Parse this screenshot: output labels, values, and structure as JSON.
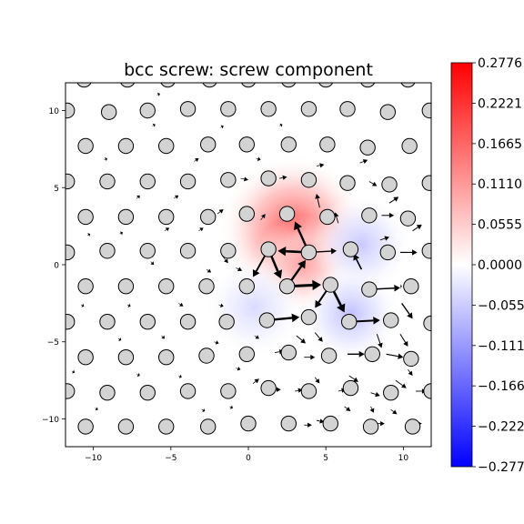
{
  "chart_data": {
    "type": "heatmap",
    "title": "bcc screw: screw component",
    "xlabel": "",
    "ylabel": "",
    "xlim": [
      -11.8,
      11.8
    ],
    "ylim": [
      -11.8,
      11.8
    ],
    "xticks": [
      -10,
      -5,
      0,
      5,
      10
    ],
    "yticks": [
      -10,
      -5,
      0,
      5,
      10
    ],
    "xtick_labels": [
      "−10",
      "−5",
      "0",
      "5",
      "10"
    ],
    "ytick_labels": [
      "−10",
      "−5",
      "0",
      "5",
      "10"
    ],
    "colormap": "bwr",
    "color_min": "#0000ff",
    "color_mid": "#ffffff",
    "color_max": "#ff0000",
    "colorbar": {
      "vmin": -0.2776,
      "vmax": 0.2776,
      "ticks": [
        0.2776,
        0.2221,
        0.1665,
        0.111,
        0.0555,
        0.0,
        -0.0555,
        -0.111,
        -0.1665,
        -0.2221,
        -0.2776
      ],
      "tick_labels": [
        "0.2776",
        "0.2221",
        "0.1665",
        "0.1110",
        "0.0555",
        "0.0000",
        "−0.0555",
        "−0.1110",
        "−0.1665",
        "−0.2221",
        "−0.2776"
      ]
    },
    "atom_color": "#d3d3d3",
    "atom_edge_color": "#000000",
    "field_peaks": [
      {
        "x": 2.9,
        "y": 2.3,
        "value": 0.19
      },
      {
        "x": 3.5,
        "y": 0.0,
        "value": 0.1
      },
      {
        "x": 7.3,
        "y": 1.3,
        "value": -0.06
      },
      {
        "x": 6.6,
        "y": -3.2,
        "value": -0.07
      },
      {
        "x": 0.4,
        "y": -2.8,
        "value": -0.04
      }
    ],
    "atoms": [
      {
        "x": -10.6,
        "y": 12.0
      },
      {
        "x": -7.8,
        "y": 12.0
      },
      {
        "x": -5.2,
        "y": 12.0
      },
      {
        "x": -2.5,
        "y": 12.0
      },
      {
        "x": 0.0,
        "y": 12.0
      },
      {
        "x": 2.6,
        "y": 12.0
      },
      {
        "x": 5.0,
        "y": 12.0
      },
      {
        "x": 7.7,
        "y": 12.0
      },
      {
        "x": 10.3,
        "y": 12.0
      },
      {
        "x": -11.7,
        "y": 10.0
      },
      {
        "x": -9.0,
        "y": 9.9
      },
      {
        "x": -6.5,
        "y": 10.0
      },
      {
        "x": -3.9,
        "y": 10.1
      },
      {
        "x": -1.3,
        "y": 10.1
      },
      {
        "x": 1.3,
        "y": 10.1
      },
      {
        "x": 3.9,
        "y": 10.1
      },
      {
        "x": 6.4,
        "y": 10.1
      },
      {
        "x": 9.0,
        "y": 9.9
      },
      {
        "x": 11.7,
        "y": 10.0
      },
      {
        "x": -10.5,
        "y": 7.7
      },
      {
        "x": -7.9,
        "y": 7.7
      },
      {
        "x": -5.3,
        "y": 7.7
      },
      {
        "x": -2.6,
        "y": 7.8
      },
      {
        "x": -0.1,
        "y": 7.8
      },
      {
        "x": 2.6,
        "y": 7.8
      },
      {
        "x": 5.1,
        "y": 7.8
      },
      {
        "x": 7.7,
        "y": 7.6
      },
      {
        "x": 10.4,
        "y": 7.7
      },
      {
        "x": -11.7,
        "y": 5.4
      },
      {
        "x": -9.1,
        "y": 5.4
      },
      {
        "x": -6.5,
        "y": 5.4
      },
      {
        "x": -3.9,
        "y": 5.4
      },
      {
        "x": -1.3,
        "y": 5.5
      },
      {
        "x": 1.3,
        "y": 5.6
      },
      {
        "x": 3.9,
        "y": 5.5
      },
      {
        "x": 6.4,
        "y": 5.3
      },
      {
        "x": 9.1,
        "y": 5.2
      },
      {
        "x": 11.7,
        "y": 5.3
      },
      {
        "x": -10.5,
        "y": 3.1
      },
      {
        "x": -7.9,
        "y": 3.1
      },
      {
        "x": -5.3,
        "y": 3.1
      },
      {
        "x": -2.6,
        "y": 3.1
      },
      {
        "x": -0.1,
        "y": 3.3
      },
      {
        "x": 2.5,
        "y": 3.3
      },
      {
        "x": 5.1,
        "y": 3.1
      },
      {
        "x": 7.8,
        "y": 3.2
      },
      {
        "x": 10.3,
        "y": 3.0
      },
      {
        "x": -11.7,
        "y": 0.8
      },
      {
        "x": -9.1,
        "y": 0.9
      },
      {
        "x": -6.5,
        "y": 0.9
      },
      {
        "x": -3.9,
        "y": 0.9
      },
      {
        "x": -1.3,
        "y": 0.9
      },
      {
        "x": 1.3,
        "y": 1.0
      },
      {
        "x": 3.9,
        "y": 0.8
      },
      {
        "x": 6.6,
        "y": 1.0
      },
      {
        "x": 9.0,
        "y": 0.8
      },
      {
        "x": 11.7,
        "y": 0.9
      },
      {
        "x": -10.5,
        "y": -1.4
      },
      {
        "x": -7.9,
        "y": -1.4
      },
      {
        "x": -5.3,
        "y": -1.4
      },
      {
        "x": -2.7,
        "y": -1.4
      },
      {
        "x": -0.1,
        "y": -1.4
      },
      {
        "x": 2.5,
        "y": -1.4
      },
      {
        "x": 5.3,
        "y": -1.3
      },
      {
        "x": 7.8,
        "y": -1.6
      },
      {
        "x": 10.5,
        "y": -1.4
      },
      {
        "x": -11.7,
        "y": -3.7
      },
      {
        "x": -9.1,
        "y": -3.7
      },
      {
        "x": -6.5,
        "y": -3.7
      },
      {
        "x": -3.9,
        "y": -3.7
      },
      {
        "x": -1.4,
        "y": -3.7
      },
      {
        "x": 1.2,
        "y": -3.6
      },
      {
        "x": 3.9,
        "y": -3.4
      },
      {
        "x": 6.5,
        "y": -3.7
      },
      {
        "x": 9.2,
        "y": -3.6
      },
      {
        "x": 11.8,
        "y": -3.8
      },
      {
        "x": -10.5,
        "y": -6.0
      },
      {
        "x": -7.9,
        "y": -6.0
      },
      {
        "x": -5.3,
        "y": -6.0
      },
      {
        "x": -2.7,
        "y": -5.9
      },
      {
        "x": -0.1,
        "y": -5.8
      },
      {
        "x": 2.6,
        "y": -5.7
      },
      {
        "x": 5.2,
        "y": -5.9
      },
      {
        "x": 8.0,
        "y": -5.8
      },
      {
        "x": 10.5,
        "y": -6.1
      },
      {
        "x": -11.7,
        "y": -8.2
      },
      {
        "x": -9.1,
        "y": -8.3
      },
      {
        "x": -6.5,
        "y": -8.3
      },
      {
        "x": -3.9,
        "y": -8.2
      },
      {
        "x": -1.3,
        "y": -8.2
      },
      {
        "x": 1.3,
        "y": -8.0
      },
      {
        "x": 3.9,
        "y": -8.2
      },
      {
        "x": 6.6,
        "y": -8.0
      },
      {
        "x": 9.2,
        "y": -8.3
      },
      {
        "x": 11.8,
        "y": -8.2
      },
      {
        "x": -10.5,
        "y": -10.5
      },
      {
        "x": -7.9,
        "y": -10.5
      },
      {
        "x": -5.3,
        "y": -10.5
      },
      {
        "x": -2.6,
        "y": -10.5
      },
      {
        "x": 0.0,
        "y": -10.3
      },
      {
        "x": 2.6,
        "y": -10.3
      },
      {
        "x": 5.3,
        "y": -10.3
      },
      {
        "x": 7.9,
        "y": -10.5
      },
      {
        "x": 10.6,
        "y": -10.5
      }
    ],
    "arrows": [
      {
        "x1": 3.9,
        "y1": 0.8,
        "x2": 1.9,
        "y2": 0.9,
        "w": 2.6
      },
      {
        "x1": 3.9,
        "y1": 0.8,
        "x2": 3.0,
        "y2": 2.8,
        "w": 2.4
      },
      {
        "x1": 1.3,
        "y1": 1.0,
        "x2": 2.1,
        "y2": -0.9,
        "w": 2.6
      },
      {
        "x1": 1.3,
        "y1": 1.0,
        "x2": 0.3,
        "y2": -0.8,
        "w": 2.0
      },
      {
        "x1": 2.5,
        "y1": -1.4,
        "x2": 4.7,
        "y2": -1.3,
        "w": 3.0
      },
      {
        "x1": 2.5,
        "y1": -1.4,
        "x2": 3.7,
        "y2": 0.3,
        "w": 2.4
      },
      {
        "x1": 5.3,
        "y1": -1.3,
        "x2": 4.3,
        "y2": -2.8,
        "w": 2.0
      },
      {
        "x1": 5.3,
        "y1": -1.3,
        "x2": 6.2,
        "y2": -3.1,
        "w": 2.6
      },
      {
        "x1": 3.9,
        "y1": 0.8,
        "x2": 5.7,
        "y2": 0.9,
        "w": 1.4
      },
      {
        "x1": 1.2,
        "y1": -3.6,
        "x2": 3.3,
        "y2": -3.4,
        "w": 2.4
      },
      {
        "x1": 6.5,
        "y1": -3.7,
        "x2": 8.5,
        "y2": -3.6,
        "w": 2.0
      },
      {
        "x1": 7.8,
        "y1": -1.6,
        "x2": 9.8,
        "y2": -1.5,
        "w": 1.6
      },
      {
        "x1": 7.3,
        "y1": -0.3,
        "x2": 6.8,
        "y2": 0.7,
        "w": 1.6
      },
      {
        "x1": 9.9,
        "y1": -2.5,
        "x2": 10.6,
        "y2": -3.5,
        "w": 1.4
      },
      {
        "x1": 8.3,
        "y1": -4.5,
        "x2": 8.6,
        "y2": -5.4,
        "w": 1.0
      },
      {
        "x1": 9.8,
        "y1": -4.5,
        "x2": 10.3,
        "y2": -5.3,
        "w": 1.0
      },
      {
        "x1": 6.4,
        "y1": -5.8,
        "x2": 7.5,
        "y2": -5.8,
        "w": 1.4
      },
      {
        "x1": 8.9,
        "y1": -5.8,
        "x2": 10.0,
        "y2": -6.0,
        "w": 1.2
      },
      {
        "x1": 3.1,
        "y1": -4.6,
        "x2": 3.7,
        "y2": -5.1,
        "w": 1.0
      },
      {
        "x1": 9.8,
        "y1": 0.8,
        "x2": 10.9,
        "y2": 0.8,
        "w": 1.2
      },
      {
        "x1": 9.8,
        "y1": -1.4,
        "x2": 9.9,
        "y2": -1.4,
        "w": 1.0
      },
      {
        "x1": 10.6,
        "y1": 2.2,
        "x2": 11.2,
        "y2": 2.6,
        "w": 1.0
      },
      {
        "x1": 9.1,
        "y1": 4.0,
        "x2": 9.7,
        "y2": 4.4,
        "w": 1.0
      },
      {
        "x1": 8.6,
        "y1": 3.2,
        "x2": 9.4,
        "y2": 3.2,
        "w": 1.0
      },
      {
        "x1": 4.6,
        "y1": 3.7,
        "x2": 4.4,
        "y2": 4.6,
        "w": 1.0
      },
      {
        "x1": 5.8,
        "y1": 2.7,
        "x2": 5.6,
        "y2": 3.4,
        "w": 0.9
      },
      {
        "x1": 8.5,
        "y1": 1.6,
        "x2": 9.1,
        "y2": 1.8,
        "w": 0.9
      },
      {
        "x1": 4.3,
        "y1": -4.4,
        "x2": 4.8,
        "y2": -5.0,
        "w": 0.9
      },
      {
        "x1": 9.5,
        "y1": -7.5,
        "x2": 10.2,
        "y2": -8.0,
        "w": 0.9
      },
      {
        "x1": 6.5,
        "y1": -7.2,
        "x2": 7.1,
        "y2": -7.6,
        "w": 0.9
      },
      {
        "x1": 10.8,
        "y1": -8.2,
        "x2": 11.5,
        "y2": -8.2,
        "w": 0.9
      },
      {
        "x1": 7.9,
        "y1": -8.3,
        "x2": 8.5,
        "y2": -8.5,
        "w": 0.9
      },
      {
        "x1": 1.7,
        "y1": -5.7,
        "x2": 2.3,
        "y2": -5.6,
        "w": 0.9
      },
      {
        "x1": 3.6,
        "y1": -6.0,
        "x2": 4.3,
        "y2": -6.0,
        "w": 0.9
      },
      {
        "x1": 10.6,
        "y1": -10.3,
        "x2": 11.2,
        "y2": -10.3,
        "w": 0.9
      },
      {
        "x1": 8.3,
        "y1": -10.3,
        "x2": 8.8,
        "y2": -10.3,
        "w": 0.8
      },
      {
        "x1": 4.4,
        "y1": -10.1,
        "x2": 4.9,
        "y2": -10.2,
        "w": 0.8
      },
      {
        "x1": 3.6,
        "y1": -10.4,
        "x2": 4.1,
        "y2": -10.4,
        "w": 0.8
      },
      {
        "x1": 1.6,
        "y1": -8.1,
        "x2": 2.1,
        "y2": -8.1,
        "w": 0.8
      },
      {
        "x1": 3.0,
        "y1": -8.2,
        "x2": 3.5,
        "y2": -8.1,
        "w": 0.8
      },
      {
        "x1": 5.8,
        "y1": -8.2,
        "x2": 6.3,
        "y2": -8.1,
        "w": 0.8
      },
      {
        "x1": 0.3,
        "y1": -7.7,
        "x2": 0.7,
        "y2": -7.4,
        "w": 0.8
      },
      {
        "x1": 9.2,
        "y1": -9.4,
        "x2": 9.6,
        "y2": -9.7,
        "w": 0.8
      },
      {
        "x1": 6.2,
        "y1": -9.2,
        "x2": 6.6,
        "y2": -9.5,
        "w": 0.8
      },
      {
        "x1": 4.3,
        "y1": -7.3,
        "x2": 4.6,
        "y2": -7.7,
        "w": 0.8
      },
      {
        "x1": 7.9,
        "y1": -9.2,
        "x2": 8.1,
        "y2": -9.6,
        "w": 0.8
      },
      {
        "x1": 10.3,
        "y1": -6.8,
        "x2": 10.6,
        "y2": -7.2,
        "w": 0.8
      },
      {
        "x1": 7.8,
        "y1": 5.4,
        "x2": 8.3,
        "y2": 5.1,
        "w": 0.8
      },
      {
        "x1": 7.2,
        "y1": 6.6,
        "x2": 7.7,
        "y2": 6.8,
        "w": 0.8
      },
      {
        "x1": 4.4,
        "y1": 6.4,
        "x2": 4.9,
        "y2": 6.5,
        "w": 0.8
      },
      {
        "x1": 2.0,
        "y1": 5.6,
        "x2": 2.5,
        "y2": 5.7,
        "w": 0.8
      },
      {
        "x1": -0.5,
        "y1": 5.6,
        "x2": 0.0,
        "y2": 5.5,
        "w": 0.7
      },
      {
        "x1": 6.0,
        "y1": 5.5,
        "x2": 6.4,
        "y2": 5.4,
        "w": 0.7
      },
      {
        "x1": -1.7,
        "y1": 0.6,
        "x2": -1.3,
        "y2": 0.1,
        "w": 0.7
      },
      {
        "x1": -0.8,
        "y1": -0.2,
        "x2": -0.4,
        "y2": -0.4,
        "w": 0.7
      },
      {
        "x1": -2.0,
        "y1": 3.3,
        "x2": -1.6,
        "y2": 3.6,
        "w": 0.7
      },
      {
        "x1": 0.8,
        "y1": 2.9,
        "x2": 1.1,
        "y2": 3.3,
        "w": 0.7
      },
      {
        "x1": -2.7,
        "y1": -0.3,
        "x2": -2.4,
        "y2": -0.5,
        "w": 0.6
      },
      {
        "x1": -1.9,
        "y1": -2.6,
        "x2": -1.6,
        "y2": -2.7,
        "w": 0.6
      },
      {
        "x1": 0.4,
        "y1": -4.6,
        "x2": 0.7,
        "y2": -4.8,
        "w": 0.6
      },
      {
        "x1": -0.8,
        "y1": -6.7,
        "x2": -0.5,
        "y2": -6.8,
        "w": 0.6
      },
      {
        "x1": -2.2,
        "y1": -5.0,
        "x2": -1.9,
        "y2": -5.1,
        "w": 0.6
      },
      {
        "x1": -3.2,
        "y1": 2.2,
        "x2": -2.9,
        "y2": 2.4,
        "w": 0.6
      },
      {
        "x1": -4.5,
        "y1": -2.5,
        "x2": -4.2,
        "y2": -2.7,
        "w": 0.6
      },
      {
        "x1": -5.4,
        "y1": 2.2,
        "x2": -5.1,
        "y2": 2.4,
        "w": 0.6
      },
      {
        "x1": -7.8,
        "y1": -2.6,
        "x2": -7.6,
        "y2": -2.7,
        "w": 0.6
      },
      {
        "x1": -8.3,
        "y1": 2.0,
        "x2": -8.1,
        "y2": 2.1,
        "w": 0.6
      },
      {
        "x1": -6.3,
        "y1": 0.2,
        "x2": -6.1,
        "y2": 0.0,
        "w": 0.6
      },
      {
        "x1": -4.8,
        "y1": 4.3,
        "x2": -4.5,
        "y2": 4.5,
        "w": 0.6
      },
      {
        "x1": -3.5,
        "y1": 6.7,
        "x2": -3.2,
        "y2": 6.9,
        "w": 0.6
      },
      {
        "x1": 0.5,
        "y1": 6.9,
        "x2": 0.8,
        "y2": 6.8,
        "w": 0.6
      },
      {
        "x1": -7.2,
        "y1": 4.3,
        "x2": -7.0,
        "y2": 4.5,
        "w": 0.6
      },
      {
        "x1": -5.6,
        "y1": -4.6,
        "x2": -5.4,
        "y2": -4.8,
        "w": 0.6
      },
      {
        "x1": -4.5,
        "y1": -7.2,
        "x2": -4.3,
        "y2": -7.3,
        "w": 0.6
      },
      {
        "x1": -8.4,
        "y1": -4.8,
        "x2": -8.2,
        "y2": -4.9,
        "w": 0.6
      },
      {
        "x1": -7.2,
        "y1": -7.1,
        "x2": -7.0,
        "y2": -7.2,
        "w": 0.6
      },
      {
        "x1": -3.0,
        "y1": -9.4,
        "x2": -2.8,
        "y2": -9.5,
        "w": 0.6
      },
      {
        "x1": -1.2,
        "y1": -9.2,
        "x2": -1.0,
        "y2": -9.3,
        "w": 0.6
      },
      {
        "x1": -9.9,
        "y1": -9.3,
        "x2": -9.7,
        "y2": -9.4,
        "w": 0.5
      },
      {
        "x1": -9.3,
        "y1": 6.8,
        "x2": -9.1,
        "y2": 6.9,
        "w": 0.5
      },
      {
        "x1": -6.2,
        "y1": 9.0,
        "x2": -6.0,
        "y2": 9.1,
        "w": 0.5
      },
      {
        "x1": -5.9,
        "y1": 11.0,
        "x2": -5.7,
        "y2": 11.1,
        "w": 0.5
      },
      {
        "x1": -1.8,
        "y1": 8.9,
        "x2": -1.6,
        "y2": 9.0,
        "w": 0.5
      },
      {
        "x1": 2.0,
        "y1": 9.0,
        "x2": 2.2,
        "y2": 9.1,
        "w": 0.5
      },
      {
        "x1": -10.4,
        "y1": 1.9,
        "x2": -10.2,
        "y2": 2.0,
        "w": 0.5
      },
      {
        "x1": -10.8,
        "y1": -2.6,
        "x2": -10.6,
        "y2": -2.7,
        "w": 0.5
      },
      {
        "x1": -11.4,
        "y1": -6.9,
        "x2": -11.2,
        "y2": -7.0,
        "w": 0.5
      }
    ]
  }
}
